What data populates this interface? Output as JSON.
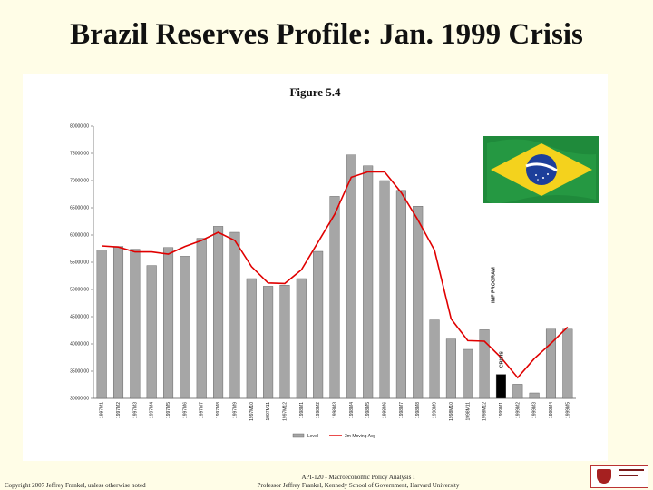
{
  "slide": {
    "title": "Brazil Reserves Profile: Jan. 1999 Crisis",
    "figure_label": "Figure 5.4",
    "footer_left": "Copyright 2007 Jeffrey Frankel, unless otherwise noted",
    "footer_course": "API-120 - Macroeconomic Policy Analysis I",
    "footer_professor": "Professor Jeffrey Frankel, Kennedy School of Government, Harvard University"
  },
  "colors": {
    "bar": "#a6a6a6",
    "bar_highlight": "#000000",
    "line": "#e00000",
    "background": "#fffde7"
  },
  "icons": {
    "flag": "brazil-flag-icon",
    "logo": "harvard-kennedy-school-logo-icon"
  },
  "chart_data": {
    "type": "bar",
    "title": "",
    "xlabel": "",
    "ylabel": "",
    "ylim": [
      30000,
      80000
    ],
    "y_ticks": [
      "30000.00",
      "35000.00",
      "40000.00",
      "45000.00",
      "50000.00",
      "55000.00",
      "60000.00",
      "65000.00",
      "70000.00",
      "75000.00",
      "80000.00"
    ],
    "categories": [
      "1997M1",
      "1997M2",
      "1997M3",
      "1997M4",
      "1997M5",
      "1997M6",
      "1997M7",
      "1997M8",
      "1997M9",
      "1997M10",
      "1997M11",
      "1997M12",
      "1998M1",
      "1998M2",
      "1998M3",
      "1998M4",
      "1998M5",
      "1998M6",
      "1998M7",
      "1998M8",
      "1998M9",
      "1998M10",
      "1998M11",
      "1998M12",
      "1999M1",
      "1999M2",
      "1999M3",
      "1999M4",
      "1999M5"
    ],
    "x_tick_labels": [
      "1997M1",
      "1997M2",
      "1997M3",
      "1997M4",
      "1997M5",
      "1997M6",
      "1997M7",
      "1997M8",
      "1997M9",
      "1997M10",
      "1997M11",
      "1997M12",
      "1998M1",
      "1998M2",
      "1998M3",
      "1998M4",
      "1998M5",
      "1998M6",
      "1998M7",
      "1998M8",
      "1998M9",
      "1998M10",
      "1998M11",
      "1998M12",
      "1999M1",
      "1999M2",
      "1999M3",
      "1999M4",
      "1999M5"
    ],
    "series": [
      {
        "name": "Level",
        "kind": "bar",
        "values": [
          57200,
          57900,
          57400,
          54400,
          57700,
          56100,
          59400,
          61600,
          60500,
          52000,
          50600,
          50800,
          52000,
          57000,
          67100,
          74700,
          72700,
          70000,
          68200,
          65300,
          44400,
          40900,
          39000,
          42600,
          34400,
          32600,
          31000,
          42700,
          42700
        ]
      },
      {
        "name": "3m Moving Avg",
        "kind": "line",
        "values": [
          58000,
          57800,
          56900,
          56900,
          56500,
          57900,
          59000,
          60500,
          59000,
          54200,
          51200,
          51100,
          53600,
          58700,
          63800,
          70600,
          71600,
          71600,
          67800,
          62800,
          57200,
          44600,
          40600,
          40500,
          37500,
          33800,
          37300,
          40100,
          43100
        ]
      }
    ],
    "highlight_index": 24,
    "annotations": [
      {
        "text": "IMF PROGRAM",
        "at_index": 23
      },
      {
        "text": "CRISIS",
        "at_index": 24
      }
    ],
    "legend_position": "bottom",
    "grid": false
  }
}
